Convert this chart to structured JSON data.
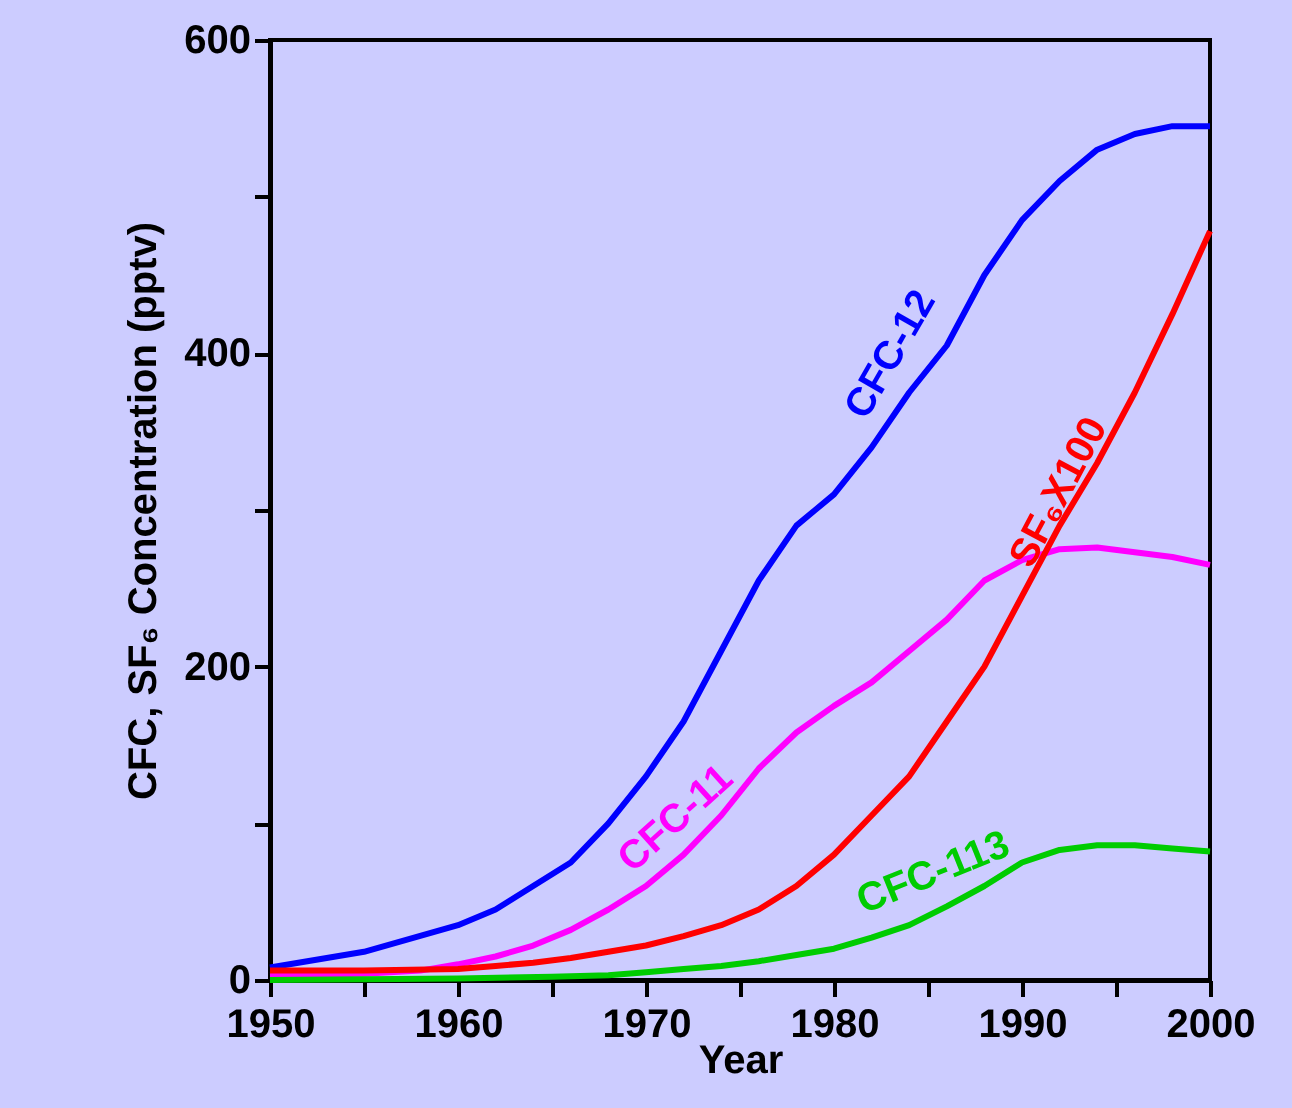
{
  "chart_data": {
    "type": "line",
    "xlabel": "Year",
    "ylabel": "CFC, SF₆ Concentration (pptv)",
    "xlim": [
      1950,
      2000
    ],
    "xticks": [
      1950,
      {
        "value": 1955,
        "label": null
      },
      1960,
      {
        "value": 1965,
        "label": null
      },
      1970,
      {
        "value": 1975,
        "label": null
      },
      1980,
      {
        "value": 1985,
        "label": null
      },
      1990,
      {
        "value": 1995,
        "label": null
      },
      2000
    ],
    "ylim": [
      0,
      600
    ],
    "yticks": [
      0,
      {
        "value": 100,
        "label": null
      },
      200,
      {
        "value": 300,
        "label": null
      },
      400,
      {
        "value": 500,
        "label": null
      },
      600
    ],
    "marker": "none",
    "line_style": "solid",
    "series": [
      {
        "name": "CFC-12",
        "color": "#0000ff",
        "x": [
          1950,
          1955,
          1960,
          1962,
          1964,
          1966,
          1968,
          1970,
          1972,
          1974,
          1976,
          1978,
          1979,
          1980,
          1982,
          1984,
          1986,
          1988,
          1990,
          1992,
          1994,
          1996,
          1998,
          2000
        ],
        "values": [
          8,
          18,
          35,
          45,
          60,
          75,
          100,
          130,
          165,
          210,
          255,
          290,
          300,
          310,
          340,
          375,
          405,
          450,
          485,
          510,
          530,
          540,
          545,
          545
        ]
      },
      {
        "name": "CFC-11",
        "color": "#ff00ff",
        "x": [
          1950,
          1955,
          1958,
          1960,
          1962,
          1964,
          1966,
          1968,
          1970,
          1972,
          1974,
          1976,
          1978,
          1980,
          1982,
          1984,
          1986,
          1988,
          1990,
          1992,
          1994,
          1996,
          1998,
          2000
        ],
        "values": [
          3,
          4,
          6,
          10,
          15,
          22,
          32,
          45,
          60,
          80,
          105,
          135,
          158,
          175,
          190,
          210,
          230,
          255,
          268,
          275,
          276,
          273,
          270,
          265
        ]
      },
      {
        "name": "SF₆X100",
        "color": "#ff0000",
        "x": [
          1950,
          1955,
          1960,
          1962,
          1964,
          1966,
          1968,
          1970,
          1972,
          1974,
          1976,
          1978,
          1980,
          1982,
          1984,
          1986,
          1988,
          1990,
          1992,
          1994,
          1996,
          1998,
          2000
        ],
        "values": [
          6,
          6,
          7,
          9,
          11,
          14,
          18,
          22,
          28,
          35,
          45,
          60,
          80,
          105,
          130,
          165,
          200,
          245,
          290,
          330,
          375,
          425,
          478
        ]
      },
      {
        "name": "CFC-113",
        "color": "#00cc00",
        "x": [
          1950,
          1960,
          1965,
          1968,
          1970,
          1972,
          1974,
          1976,
          1978,
          1980,
          1982,
          1984,
          1986,
          1988,
          1990,
          1992,
          1994,
          1996,
          1998,
          2000
        ],
        "values": [
          0,
          1,
          2,
          3,
          5,
          7,
          9,
          12,
          16,
          20,
          27,
          35,
          47,
          60,
          75,
          83,
          86,
          86,
          84,
          82
        ]
      }
    ]
  }
}
